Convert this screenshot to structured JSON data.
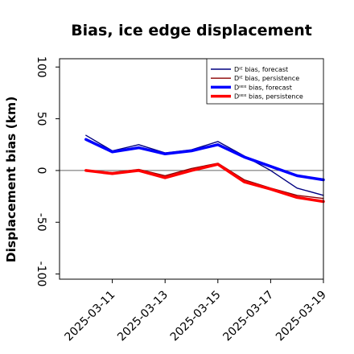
{
  "chart_data": {
    "type": "line",
    "title": "Bias, ice edge displacement",
    "xlabel": "",
    "ylabel": "Displacement bias (km)",
    "ylim": [
      -105,
      108
    ],
    "yticks": [
      -100,
      -50,
      0,
      50,
      100
    ],
    "xlim": [
      "2025-03-09",
      "2025-03-19"
    ],
    "xticks": [
      "2025-03-11",
      "2025-03-13",
      "2025-03-15",
      "2025-03-17",
      "2025-03-19"
    ],
    "highlight_tick": "2025-03-11",
    "highlight_color": "#2ca02c",
    "zero_line": true,
    "grid": false,
    "legend_position": "top-right",
    "x": [
      "2025-03-10",
      "2025-03-11",
      "2025-03-12",
      "2025-03-13",
      "2025-03-14",
      "2025-03-15",
      "2025-03-16",
      "2025-03-17",
      "2025-03-18",
      "2025-03-19"
    ],
    "series": [
      {
        "name": "Dᴵᴱ bias, forecast",
        "color": "#000080",
        "width": 1.4,
        "values": [
          34,
          19,
          25,
          17,
          20,
          28,
          14,
          0,
          -17,
          -24
        ]
      },
      {
        "name": "Dᴵᴱ bias, persistence",
        "color": "#8b0000",
        "width": 1.4,
        "values": [
          0,
          -2,
          1,
          -5,
          2,
          7,
          -9,
          -17,
          -24,
          -27
        ]
      },
      {
        "name": "Dᴵᴵᴱᴱ bias, forecast",
        "color": "#0000ff",
        "width": 3.5,
        "values": [
          30,
          18,
          22,
          16,
          19,
          25,
          13,
          4,
          -5,
          -9
        ]
      },
      {
        "name": "Dᴵᴵᴱᴱ bias, persistence",
        "color": "#ff0000",
        "width": 3.5,
        "values": [
          0,
          -3,
          0,
          -7,
          0,
          6,
          -11,
          -18,
          -26,
          -30
        ]
      }
    ]
  }
}
